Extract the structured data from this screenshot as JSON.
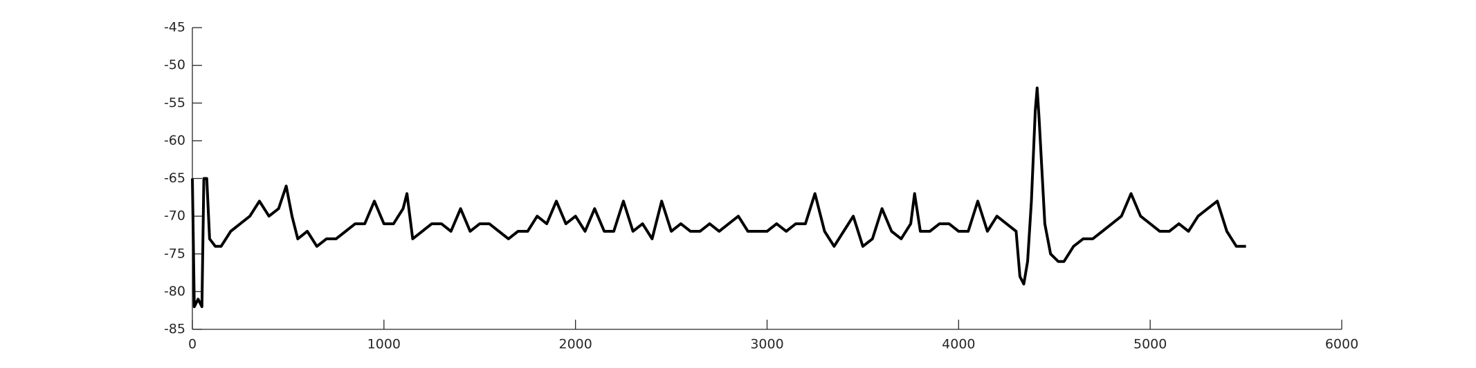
{
  "chart_data": {
    "type": "line",
    "x": [
      0,
      10,
      30,
      50,
      60,
      75,
      90,
      120,
      150,
      200,
      250,
      300,
      350,
      400,
      450,
      490,
      520,
      550,
      600,
      650,
      700,
      750,
      800,
      850,
      900,
      950,
      1000,
      1050,
      1100,
      1120,
      1150,
      1200,
      1250,
      1300,
      1350,
      1400,
      1450,
      1500,
      1550,
      1600,
      1650,
      1700,
      1750,
      1800,
      1850,
      1900,
      1950,
      2000,
      2050,
      2100,
      2150,
      2200,
      2250,
      2300,
      2350,
      2400,
      2450,
      2500,
      2550,
      2600,
      2650,
      2700,
      2750,
      2800,
      2850,
      2900,
      2950,
      3000,
      3050,
      3100,
      3150,
      3200,
      3250,
      3300,
      3350,
      3400,
      3450,
      3500,
      3550,
      3600,
      3650,
      3700,
      3750,
      3770,
      3800,
      3850,
      3900,
      3950,
      4000,
      4050,
      4100,
      4150,
      4200,
      4250,
      4300,
      4320,
      4340,
      4360,
      4380,
      4400,
      4410,
      4420,
      4450,
      4480,
      4520,
      4550,
      4600,
      4650,
      4700,
      4750,
      4800,
      4850,
      4900,
      4950,
      5000,
      5050,
      5100,
      5150,
      5200,
      5250,
      5300,
      5350,
      5400,
      5450,
      5500
    ],
    "series": [
      {
        "color": "#000000",
        "values": [
          -65,
          -82,
          -81,
          -82,
          -65,
          -65,
          -73,
          -74,
          -74,
          -72,
          -71,
          -70,
          -68,
          -70,
          -69,
          -66,
          -70,
          -73,
          -72,
          -74,
          -73,
          -73,
          -72,
          -71,
          -71,
          -68,
          -71,
          -71,
          -69,
          -67,
          -73,
          -72,
          -71,
          -71,
          -72,
          -69,
          -72,
          -71,
          -71,
          -72,
          -73,
          -72,
          -72,
          -70,
          -71,
          -68,
          -71,
          -70,
          -72,
          -69,
          -72,
          -72,
          -68,
          -72,
          -71,
          -73,
          -68,
          -72,
          -71,
          -72,
          -72,
          -71,
          -72,
          -71,
          -70,
          -72,
          -72,
          -72,
          -71,
          -72,
          -71,
          -71,
          -67,
          -72,
          -74,
          -72,
          -70,
          -74,
          -73,
          -69,
          -72,
          -73,
          -71,
          -67,
          -72,
          -72,
          -71,
          -71,
          -72,
          -72,
          -68,
          -72,
          -70,
          -71,
          -72,
          -78,
          -79,
          -76,
          -68,
          -56,
          -53,
          -57,
          -71,
          -75,
          -76,
          -76,
          -74,
          -73,
          -73,
          -72,
          -71,
          -70,
          -67,
          -70,
          -71,
          -72,
          -72,
          -71,
          -72,
          -70,
          -69,
          -68,
          -72,
          -74,
          -74
        ]
      }
    ],
    "xlim": [
      0,
      6000
    ],
    "xticks": [
      0,
      1000,
      2000,
      3000,
      4000,
      5000,
      6000
    ],
    "ylim": [
      -85,
      -45
    ],
    "yticks": [
      -85,
      -80,
      -75,
      -70,
      -65,
      -60,
      -55,
      -50,
      -45
    ]
  }
}
